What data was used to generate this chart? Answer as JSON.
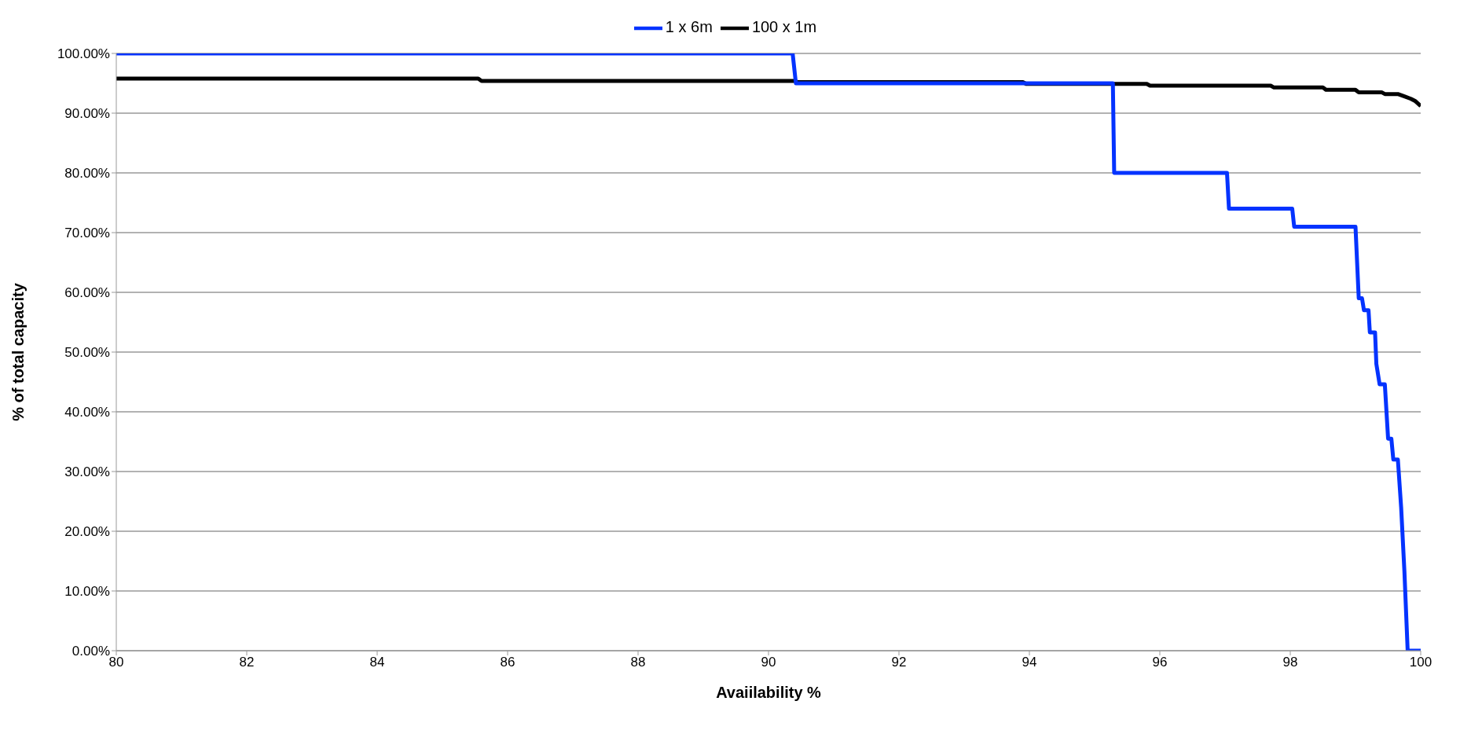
{
  "chart_data": {
    "type": "line",
    "xlabel": "Avaiilability %",
    "ylabel": "% of total capacity",
    "legend": "top",
    "grid": "y",
    "marker": "none",
    "line_style": "solid",
    "xlim": [
      80,
      100
    ],
    "xticks": [
      80,
      82,
      84,
      86,
      88,
      90,
      92,
      94,
      96,
      98,
      100
    ],
    "ylim": [
      0,
      100
    ],
    "yticks": [
      {
        "value": 0,
        "label": "0.00%"
      },
      {
        "value": 10,
        "label": "10.00%"
      },
      {
        "value": 20,
        "label": "20.00%"
      },
      {
        "value": 30,
        "label": "30.00%"
      },
      {
        "value": 40,
        "label": "40.00%"
      },
      {
        "value": 50,
        "label": "50.00%"
      },
      {
        "value": 60,
        "label": "60.00%"
      },
      {
        "value": 70,
        "label": "70.00%"
      },
      {
        "value": 80,
        "label": "80.00%"
      },
      {
        "value": 90,
        "label": "90.00%"
      },
      {
        "value": 100,
        "label": "100.00%"
      }
    ],
    "series": [
      {
        "name": "100 x 1m",
        "color": "#000000",
        "x": [
          80,
          85.55,
          85.6,
          90.4,
          90.45,
          93.9,
          93.95,
          95.8,
          95.85,
          97.7,
          97.75,
          98.5,
          98.55,
          99.0,
          99.05,
          99.4,
          99.45,
          99.65,
          99.75,
          99.85,
          99.92,
          100
        ],
        "values": [
          95.8,
          95.8,
          95.4,
          95.4,
          95.2,
          95.2,
          94.9,
          94.9,
          94.6,
          94.6,
          94.3,
          94.3,
          93.9,
          93.9,
          93.5,
          93.5,
          93.2,
          93.2,
          92.8,
          92.4,
          92.0,
          91.2
        ]
      },
      {
        "name": "1 x 6m",
        "color": "#0433ff",
        "x": [
          80,
          90.37,
          90.42,
          95.28,
          95.3,
          97.03,
          97.06,
          98.03,
          98.06,
          99.0,
          99.05,
          99.1,
          99.13,
          99.2,
          99.22,
          99.3,
          99.32,
          99.37,
          99.45,
          99.5,
          99.55,
          99.58,
          99.65,
          99.7,
          99.75,
          99.8,
          100
        ],
        "values": [
          100,
          100,
          95,
          95,
          80,
          80,
          74,
          74,
          71,
          71,
          59,
          59,
          57,
          57,
          53.3,
          53.3,
          48,
          44.6,
          44.6,
          35.5,
          35.5,
          32,
          32,
          24,
          13.3,
          0,
          0
        ]
      }
    ]
  }
}
